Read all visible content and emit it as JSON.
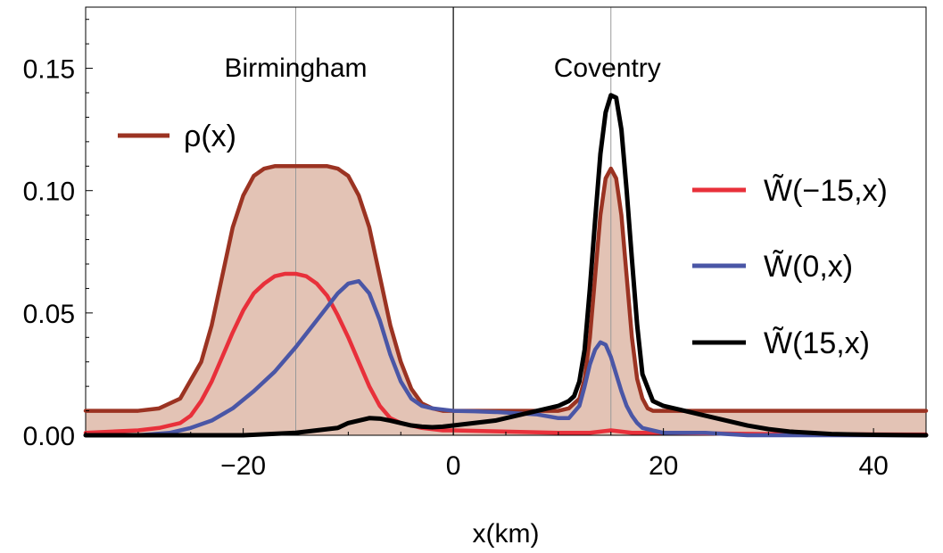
{
  "chart_data": {
    "type": "line",
    "xlabel": "x(km)",
    "ylabel": "",
    "xlim": [
      -35,
      45
    ],
    "ylim": [
      0,
      0.175
    ],
    "x_ticks": [
      {
        "value": -20,
        "label": "−20"
      },
      {
        "value": 0,
        "label": "0"
      },
      {
        "value": 20,
        "label": "20"
      },
      {
        "value": 40,
        "label": "40"
      }
    ],
    "y_ticks": [
      {
        "value": 0,
        "label": "0.00"
      },
      {
        "value": 0.05,
        "label": "0.05"
      },
      {
        "value": 0.1,
        "label": "0.10"
      },
      {
        "value": 0.15,
        "label": "0.15"
      }
    ],
    "annotations": [
      {
        "text": "Birmingham",
        "x": -15
      },
      {
        "text": "Coventry",
        "x": 15
      }
    ],
    "reference_lines_x": [
      -15,
      0,
      15
    ],
    "series": [
      {
        "name": "ρ(x)",
        "color": "#9b3322",
        "fill": "#e3c3b5",
        "x": [
          -35,
          -30,
          -28,
          -26,
          -24,
          -23,
          -22,
          -21,
          -20,
          -19,
          -18,
          -17,
          -16,
          -15,
          -14,
          -13,
          -12,
          -11,
          -10,
          -9,
          -8,
          -7,
          -6,
          -5,
          -4,
          -3,
          -2,
          -1,
          0,
          4,
          8,
          10,
          11,
          12,
          12.5,
          13,
          13.5,
          14,
          14.5,
          15,
          15.5,
          16,
          16.5,
          17,
          17.5,
          18,
          18.5,
          19,
          20,
          24,
          28,
          35,
          45
        ],
        "values": [
          0.01,
          0.01,
          0.011,
          0.015,
          0.03,
          0.045,
          0.065,
          0.085,
          0.098,
          0.106,
          0.109,
          0.11,
          0.11,
          0.11,
          0.11,
          0.11,
          0.11,
          0.109,
          0.106,
          0.098,
          0.085,
          0.065,
          0.045,
          0.03,
          0.019,
          0.013,
          0.011,
          0.01,
          0.01,
          0.01,
          0.01,
          0.01,
          0.011,
          0.015,
          0.023,
          0.04,
          0.065,
          0.09,
          0.105,
          0.109,
          0.105,
          0.09,
          0.065,
          0.04,
          0.023,
          0.015,
          0.011,
          0.01,
          0.01,
          0.01,
          0.01,
          0.01,
          0.01
        ]
      },
      {
        "name": "W̃(−15,x)",
        "color": "#e8303a",
        "x": [
          -35,
          -30,
          -28,
          -26,
          -25,
          -24,
          -23,
          -22,
          -21,
          -20,
          -19,
          -18,
          -17,
          -16,
          -15,
          -14,
          -13,
          -12,
          -11,
          -10,
          -9,
          -8,
          -7,
          -6,
          -5,
          -4,
          -3,
          -2,
          -1,
          0,
          5,
          10,
          13,
          14,
          15,
          16,
          17,
          20,
          30,
          45
        ],
        "values": [
          0.001,
          0.002,
          0.003,
          0.005,
          0.008,
          0.014,
          0.022,
          0.032,
          0.042,
          0.051,
          0.058,
          0.062,
          0.065,
          0.066,
          0.066,
          0.065,
          0.062,
          0.057,
          0.049,
          0.04,
          0.03,
          0.02,
          0.012,
          0.007,
          0.005,
          0.004,
          0.003,
          0.0025,
          0.002,
          0.002,
          0.0015,
          0.001,
          0.001,
          0.0015,
          0.002,
          0.0015,
          0.001,
          0.001,
          0.0005,
          0.0003
        ]
      },
      {
        "name": "W̃(0,x)",
        "color": "#4a56a6",
        "x": [
          -35,
          -30,
          -27,
          -25,
          -23,
          -21,
          -19,
          -17,
          -15,
          -13,
          -11,
          -10,
          -9,
          -8,
          -7,
          -6,
          -5,
          -4,
          -3,
          -2,
          -1,
          0,
          2,
          4,
          6,
          8,
          10,
          11,
          12,
          12.5,
          13,
          13.5,
          14,
          14.5,
          15,
          15.5,
          16,
          16.5,
          17,
          17.5,
          18,
          19,
          20,
          24,
          28,
          32,
          35,
          40,
          45
        ],
        "values": [
          0.0,
          0.0,
          0.001,
          0.003,
          0.006,
          0.011,
          0.018,
          0.026,
          0.036,
          0.047,
          0.058,
          0.062,
          0.063,
          0.058,
          0.047,
          0.033,
          0.022,
          0.015,
          0.012,
          0.011,
          0.0105,
          0.01,
          0.0098,
          0.0095,
          0.009,
          0.0085,
          0.007,
          0.007,
          0.012,
          0.02,
          0.029,
          0.035,
          0.038,
          0.037,
          0.032,
          0.025,
          0.018,
          0.012,
          0.008,
          0.005,
          0.003,
          0.002,
          0.001,
          0.001,
          0.0,
          0.0,
          0.0,
          0.0,
          0.0
        ]
      },
      {
        "name": "W̃(15,x)",
        "color": "#000000",
        "x": [
          -35,
          -25,
          -20,
          -15,
          -13,
          -11,
          -10,
          -9,
          -8,
          -7,
          -6,
          -5,
          -4,
          -3,
          -2,
          -1,
          0,
          2,
          4,
          6,
          8,
          10,
          11,
          11.5,
          12,
          12.5,
          13,
          13.5,
          14,
          14.5,
          15,
          15.5,
          16,
          16.5,
          17,
          17.5,
          18,
          19,
          20,
          22,
          24,
          26,
          28,
          30,
          32,
          34,
          36,
          38,
          40,
          42,
          45
        ],
        "values": [
          0.0,
          0.0,
          0.0,
          0.001,
          0.002,
          0.003,
          0.005,
          0.006,
          0.007,
          0.0068,
          0.006,
          0.005,
          0.004,
          0.0035,
          0.0033,
          0.0035,
          0.004,
          0.005,
          0.006,
          0.008,
          0.01,
          0.012,
          0.014,
          0.016,
          0.022,
          0.035,
          0.06,
          0.088,
          0.115,
          0.132,
          0.139,
          0.138,
          0.125,
          0.1,
          0.072,
          0.045,
          0.025,
          0.014,
          0.012,
          0.01,
          0.008,
          0.006,
          0.004,
          0.0025,
          0.0015,
          0.001,
          0.0005,
          0.0003,
          0.0002,
          0.0001,
          0.0
        ]
      }
    ]
  }
}
